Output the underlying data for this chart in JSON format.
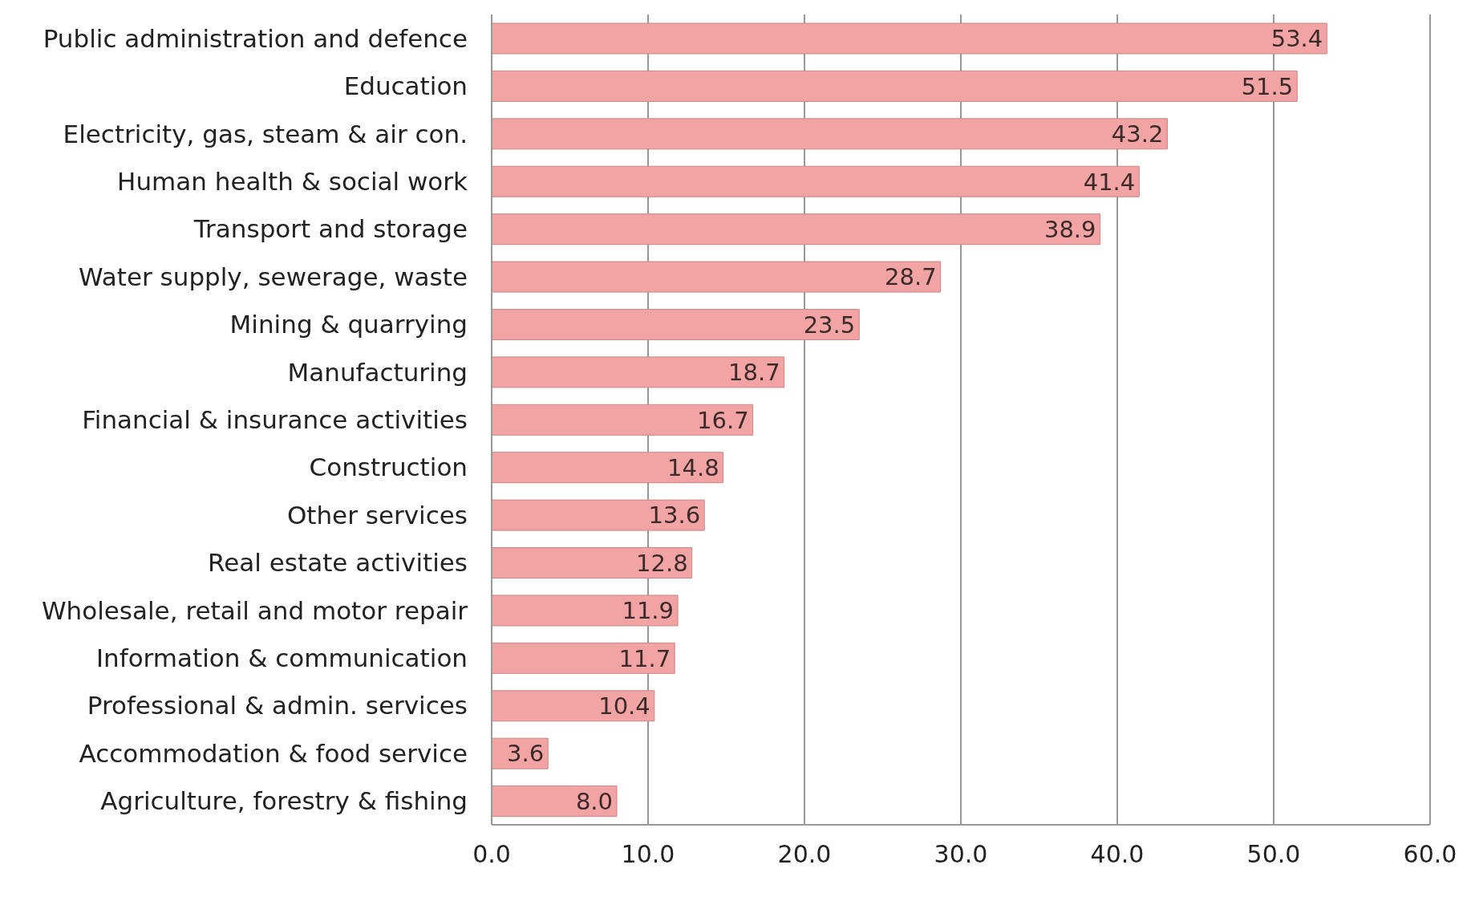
{
  "chart_data": {
    "type": "bar",
    "orientation": "horizontal",
    "categories": [
      "Public administration and defence",
      "Education",
      "Electricity, gas, steam & air con.",
      "Human health & social work",
      "Transport and storage",
      "Water supply, sewerage, waste",
      "Mining & quarrying",
      "Manufacturing",
      "Financial & insurance activities",
      "Construction",
      "Other services",
      "Real estate activities",
      "Wholesale, retail and motor repair",
      "Information & communication",
      "Professional & admin. services",
      "Accommodation & food service",
      "Agriculture, forestry & fishing"
    ],
    "values": [
      53.4,
      51.5,
      43.2,
      41.4,
      38.9,
      28.7,
      23.5,
      18.7,
      16.7,
      14.8,
      13.6,
      12.8,
      11.9,
      11.7,
      10.4,
      3.6,
      8.0
    ],
    "value_labels": [
      "53.4",
      "51.5",
      "43.2",
      "41.4",
      "38.9",
      "28.7",
      "23.5",
      "18.7",
      "16.7",
      "14.8",
      "13.6",
      "12.8",
      "11.9",
      "11.7",
      "10.4",
      "3.6",
      "8.0"
    ],
    "color": "#f2a3a3",
    "xlim": [
      0,
      60
    ],
    "xticks": [
      {
        "value": 0,
        "label": "0.0"
      },
      {
        "value": 10,
        "label": "10.0"
      },
      {
        "value": 20,
        "label": "20.0"
      },
      {
        "value": 30,
        "label": "30.0"
      },
      {
        "value": 40,
        "label": "40.0"
      },
      {
        "value": 50,
        "label": "50.0"
      },
      {
        "value": 60,
        "label": "60.0"
      }
    ],
    "grid": "x"
  }
}
